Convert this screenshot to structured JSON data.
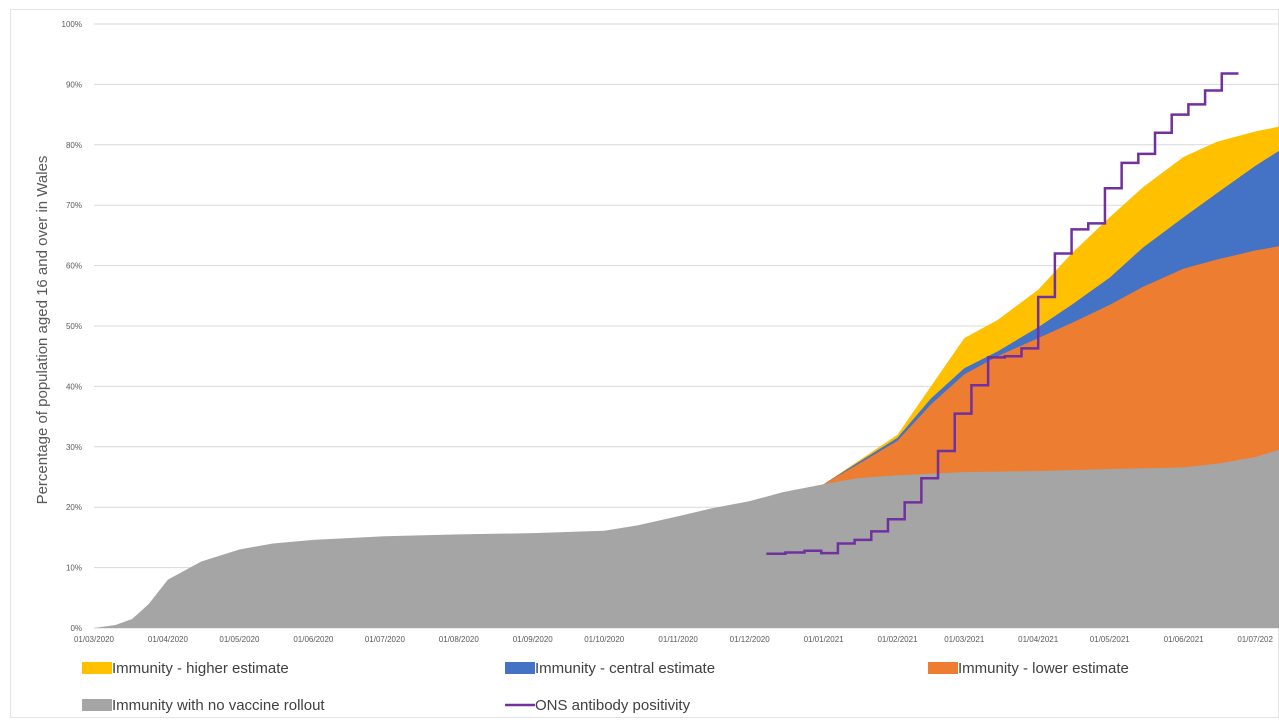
{
  "chart_data": {
    "type": "area",
    "title": "",
    "ylabel": "Percentage of population aged 16 and over in Wales",
    "xlabel": "",
    "ylim": [
      0,
      100
    ],
    "y_ticks": [
      "0%",
      "10%",
      "20%",
      "30%",
      "40%",
      "50%",
      "60%",
      "70%",
      "80%",
      "90%",
      "100%"
    ],
    "x_ticks": [
      "01/03/2020",
      "01/04/2020",
      "01/05/2020",
      "01/06/2020",
      "01/07/2020",
      "01/08/2020",
      "01/09/2020",
      "01/10/2020",
      "01/11/2020",
      "01/12/2020",
      "01/01/2021",
      "01/02/2021",
      "01/03/2021",
      "01/04/2021",
      "01/05/2021",
      "01/06/2021",
      "01/07/202"
    ],
    "x_range": [
      "01/03/2020",
      "11/07/2021"
    ],
    "grid": "horizontal",
    "legend_position": "bottom",
    "colors": {
      "higher": "#ffc000",
      "central": "#4472c4",
      "lower": "#ed7d31",
      "novax": "#a5a5a5",
      "ons": "#7030a0"
    },
    "series": [
      {
        "key": "novax",
        "name": "Immunity with no vaccine rollout",
        "points": [
          [
            "01/03/2020",
            0
          ],
          [
            "10/03/2020",
            0.5
          ],
          [
            "17/03/2020",
            1.5
          ],
          [
            "24/03/2020",
            4
          ],
          [
            "01/04/2020",
            8
          ],
          [
            "15/04/2020",
            11
          ],
          [
            "01/05/2020",
            13
          ],
          [
            "15/05/2020",
            14
          ],
          [
            "01/06/2020",
            14.6
          ],
          [
            "01/07/2020",
            15.2
          ],
          [
            "01/08/2020",
            15.5
          ],
          [
            "01/09/2020",
            15.7
          ],
          [
            "01/10/2020",
            16.1
          ],
          [
            "15/10/2020",
            17
          ],
          [
            "01/11/2020",
            18.5
          ],
          [
            "15/11/2020",
            19.8
          ],
          [
            "01/12/2020",
            21
          ],
          [
            "15/12/2020",
            22.5
          ],
          [
            "01/01/2021",
            23.8
          ],
          [
            "15/01/2021",
            24.8
          ],
          [
            "01/02/2021",
            25.3
          ],
          [
            "01/03/2021",
            25.8
          ],
          [
            "01/04/2021",
            26
          ],
          [
            "01/05/2021",
            26.3
          ],
          [
            "01/06/2021",
            26.6
          ],
          [
            "15/06/2021",
            27.2
          ],
          [
            "01/07/2021",
            28.3
          ],
          [
            "11/07/2021",
            29.5
          ]
        ]
      },
      {
        "key": "lower",
        "name": "Immunity - lower estimate",
        "points": [
          [
            "01/01/2021",
            23.8
          ],
          [
            "15/01/2021",
            27
          ],
          [
            "01/02/2021",
            31
          ],
          [
            "15/02/2021",
            37
          ],
          [
            "01/03/2021",
            42
          ],
          [
            "15/03/2021",
            45
          ],
          [
            "01/04/2021",
            48
          ],
          [
            "15/04/2021",
            50.5
          ],
          [
            "01/05/2021",
            53.5
          ],
          [
            "15/05/2021",
            56.5
          ],
          [
            "01/06/2021",
            59.5
          ],
          [
            "15/06/2021",
            61
          ],
          [
            "01/07/2021",
            62.5
          ],
          [
            "11/07/2021",
            63.2
          ]
        ]
      },
      {
        "key": "central",
        "name": "Immunity - central estimate",
        "points": [
          [
            "01/01/2021",
            23.8
          ],
          [
            "15/01/2021",
            27.3
          ],
          [
            "01/02/2021",
            31.5
          ],
          [
            "15/02/2021",
            38
          ],
          [
            "01/03/2021",
            43
          ],
          [
            "15/03/2021",
            45.8
          ],
          [
            "01/04/2021",
            49.8
          ],
          [
            "15/04/2021",
            53.5
          ],
          [
            "01/05/2021",
            58
          ],
          [
            "15/05/2021",
            63
          ],
          [
            "01/06/2021",
            68
          ],
          [
            "15/06/2021",
            72
          ],
          [
            "01/07/2021",
            76.5
          ],
          [
            "11/07/2021",
            79
          ]
        ]
      },
      {
        "key": "higher",
        "name": "Immunity - higher estimate",
        "points": [
          [
            "01/01/2021",
            23.8
          ],
          [
            "15/01/2021",
            27.5
          ],
          [
            "01/02/2021",
            32
          ],
          [
            "15/02/2021",
            40
          ],
          [
            "01/03/2021",
            48
          ],
          [
            "15/03/2021",
            51
          ],
          [
            "01/04/2021",
            56
          ],
          [
            "15/04/2021",
            62
          ],
          [
            "01/05/2021",
            68
          ],
          [
            "15/05/2021",
            73
          ],
          [
            "01/06/2021",
            78
          ],
          [
            "15/06/2021",
            80.5
          ],
          [
            "01/07/2021",
            82.2
          ],
          [
            "11/07/2021",
            83
          ]
        ]
      },
      {
        "key": "ons",
        "name": "ONS antibody positivity",
        "type": "step",
        "points": [
          [
            "08/12/2020",
            12.3
          ],
          [
            "16/12/2020",
            12.5
          ],
          [
            "24/12/2020",
            12.8
          ],
          [
            "31/12/2020",
            12.4
          ],
          [
            "07/01/2021",
            14
          ],
          [
            "14/01/2021",
            14.6
          ],
          [
            "21/01/2021",
            16
          ],
          [
            "28/01/2021",
            18
          ],
          [
            "04/02/2021",
            20.8
          ],
          [
            "11/02/2021",
            24.8
          ],
          [
            "18/02/2021",
            29.3
          ],
          [
            "25/02/2021",
            35.5
          ],
          [
            "04/03/2021",
            40.2
          ],
          [
            "11/03/2021",
            44.8
          ],
          [
            "18/03/2021",
            45
          ],
          [
            "25/03/2021",
            46.3
          ],
          [
            "01/04/2021",
            54.8
          ],
          [
            "08/04/2021",
            62
          ],
          [
            "15/04/2021",
            66
          ],
          [
            "22/04/2021",
            67
          ],
          [
            "29/04/2021",
            72.8
          ],
          [
            "06/05/2021",
            77
          ],
          [
            "13/05/2021",
            78.5
          ],
          [
            "20/05/2021",
            82
          ],
          [
            "27/05/2021",
            85
          ],
          [
            "03/06/2021",
            86.7
          ],
          [
            "10/06/2021",
            89
          ],
          [
            "17/06/2021",
            91.8
          ],
          [
            "24/06/2021",
            91.8
          ]
        ]
      }
    ],
    "legend": [
      {
        "key": "higher",
        "label": "Immunity - higher estimate"
      },
      {
        "key": "central",
        "label": "Immunity - central estimate"
      },
      {
        "key": "lower",
        "label": "Immunity - lower estimate"
      },
      {
        "key": "novax",
        "label": "Immunity with no vaccine rollout"
      },
      {
        "key": "ons",
        "label": "ONS antibody positivity"
      }
    ]
  }
}
